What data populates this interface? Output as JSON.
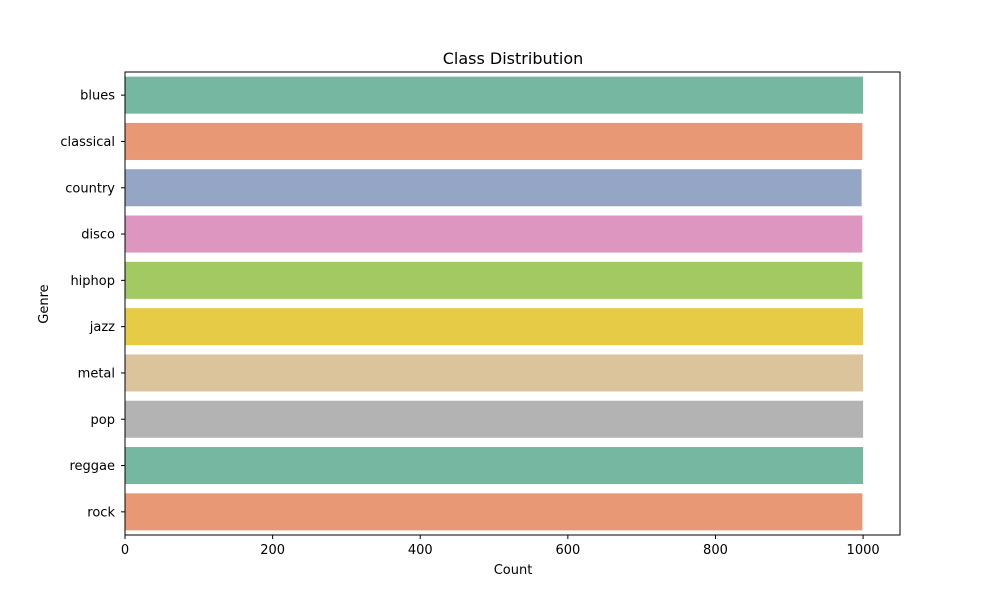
{
  "chart_data": {
    "type": "bar",
    "orientation": "horizontal",
    "title": "Class Distribution",
    "xlabel": "Count",
    "ylabel": "Genre",
    "categories": [
      "blues",
      "classical",
      "country",
      "disco",
      "hiphop",
      "jazz",
      "metal",
      "pop",
      "reggae",
      "rock"
    ],
    "values": [
      1000,
      999,
      998,
      999,
      999,
      1000,
      1000,
      1000,
      1000,
      999
    ],
    "xlim": [
      0,
      1050
    ],
    "xticks": [
      0,
      200,
      400,
      600,
      800,
      1000
    ],
    "grid": false,
    "bar_colors": [
      "#76b7a1",
      "#e99876",
      "#95a5c6",
      "#dd96c0",
      "#a3c962",
      "#e6cb47",
      "#dbc39c",
      "#b3b3b3",
      "#76b7a1",
      "#e99876"
    ]
  }
}
